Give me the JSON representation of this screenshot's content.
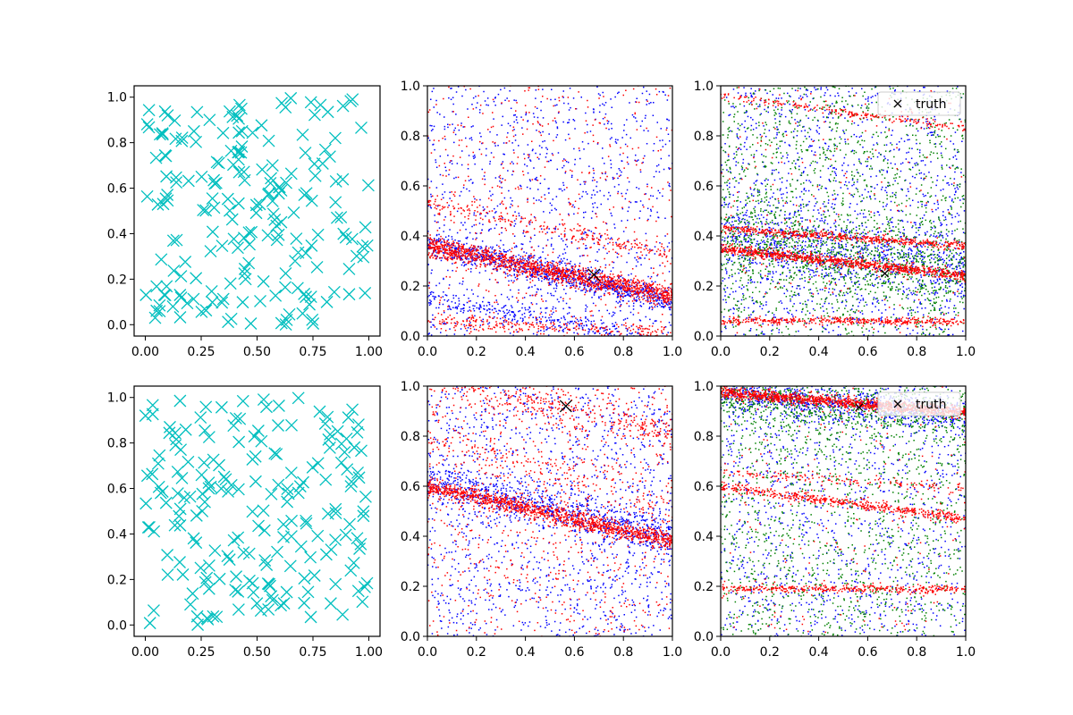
{
  "chart_data": [
    {
      "panel": "top-left",
      "type": "scatter",
      "xlim": [
        -0.05,
        1.05
      ],
      "ylim": [
        -0.05,
        1.05
      ],
      "xticks": [
        "0.00",
        "0.25",
        "0.50",
        "0.75",
        "1.00"
      ],
      "yticks": [
        "0.0",
        "0.2",
        "0.4",
        "0.6",
        "0.8",
        "1.0"
      ],
      "grid": false,
      "series": [
        {
          "marker": "x",
          "color": "#00bfbf",
          "random_uniform_points": 200,
          "seed": 11
        }
      ]
    },
    {
      "panel": "top-middle",
      "type": "scatter",
      "xlim": [
        0,
        1
      ],
      "ylim": [
        0,
        1
      ],
      "xticks": [
        "0.0",
        "0.2",
        "0.4",
        "0.6",
        "0.8",
        "1.0"
      ],
      "yticks": [
        "0.0",
        "0.2",
        "0.4",
        "0.6",
        "0.8",
        "1.0"
      ],
      "grid": false,
      "series": [
        {
          "color": "#0000ff",
          "marker": "dot",
          "bands": [
            {
              "y0": 0.37,
              "slope": -0.23,
              "spread": 0.025,
              "n": 900
            },
            {
              "y0": 0.16,
              "slope": -0.2,
              "spread": 0.02,
              "n": 300
            }
          ],
          "background": 1100,
          "seed": 21
        },
        {
          "color": "#ff0000",
          "marker": "dot",
          "bands": [
            {
              "y0": 0.36,
              "slope": -0.2,
              "spread": 0.02,
              "n": 1400
            },
            {
              "y0": 0.53,
              "slope": -0.2,
              "spread": 0.02,
              "n": 250
            },
            {
              "y0": 0.06,
              "slope": -0.05,
              "spread": 0.015,
              "n": 250
            }
          ],
          "background": 500,
          "seed": 22
        }
      ],
      "truth": {
        "x": 0.68,
        "y": 0.245,
        "marker": "X",
        "color": "#000000"
      }
    },
    {
      "panel": "top-right",
      "type": "scatter",
      "xlim": [
        0,
        1
      ],
      "ylim": [
        0,
        1
      ],
      "xticks": [
        "0.0",
        "0.2",
        "0.4",
        "0.6",
        "0.8",
        "1.0"
      ],
      "yticks": [
        "0.0",
        "0.2",
        "0.4",
        "0.6",
        "0.8",
        "1.0"
      ],
      "grid": false,
      "legend": {
        "entries": [
          "truth"
        ],
        "marker": "x",
        "placement": "upper right"
      },
      "series": [
        {
          "color": "#0000ff",
          "marker": "dot",
          "bands": [
            {
              "y0": 0.4,
              "slope": -0.12,
              "spread": 0.07,
              "n": 700
            }
          ],
          "background": 1300,
          "seed": 31
        },
        {
          "color": "#008000",
          "marker": "dot",
          "bands": [
            {
              "y0": 0.38,
              "slope": -0.12,
              "spread": 0.08,
              "n": 800
            }
          ],
          "background": 1400,
          "seed": 32
        },
        {
          "color": "#ff0000",
          "marker": "dot",
          "bands": [
            {
              "y0": 0.35,
              "slope": -0.11,
              "spread": 0.01,
              "n": 900
            },
            {
              "y0": 0.43,
              "slope": -0.07,
              "spread": 0.008,
              "n": 500
            },
            {
              "y0": 0.06,
              "slope": 0.0,
              "spread": 0.008,
              "n": 400
            },
            {
              "y0": 0.96,
              "slope": -0.13,
              "spread": 0.008,
              "n": 200
            }
          ],
          "background": 200,
          "seed": 33
        }
      ],
      "truth": {
        "x": 0.67,
        "y": 0.25,
        "marker": "x",
        "color": "#000000"
      }
    },
    {
      "panel": "bottom-left",
      "type": "scatter",
      "xlim": [
        -0.05,
        1.05
      ],
      "ylim": [
        -0.05,
        1.05
      ],
      "xticks": [
        "0.00",
        "0.25",
        "0.50",
        "0.75",
        "1.00"
      ],
      "yticks": [
        "0.0",
        "0.2",
        "0.4",
        "0.6",
        "0.8",
        "1.0"
      ],
      "grid": false,
      "series": [
        {
          "marker": "x",
          "color": "#00bfbf",
          "random_uniform_points": 200,
          "seed": 41
        }
      ]
    },
    {
      "panel": "bottom-middle",
      "type": "scatter",
      "xlim": [
        0,
        1
      ],
      "ylim": [
        0,
        1
      ],
      "xticks": [
        "0.0",
        "0.2",
        "0.4",
        "0.6",
        "0.8",
        "1.0"
      ],
      "yticks": [
        "0.0",
        "0.2",
        "0.4",
        "0.6",
        "0.8",
        "1.0"
      ],
      "grid": false,
      "series": [
        {
          "color": "#0000ff",
          "marker": "dot",
          "bands": [
            {
              "y0": 0.62,
              "slope": -0.22,
              "spread": 0.04,
              "n": 800
            }
          ],
          "background": 1300,
          "seed": 51
        },
        {
          "color": "#ff0000",
          "marker": "dot",
          "bands": [
            {
              "y0": 0.6,
              "slope": -0.22,
              "spread": 0.018,
              "n": 1200
            },
            {
              "y0": 1.05,
              "slope": -0.25,
              "spread": 0.04,
              "n": 400
            },
            {
              "y0": 0.8,
              "slope": -0.3,
              "spread": 0.05,
              "n": 200
            }
          ],
          "background": 700,
          "seed": 52
        }
      ],
      "truth": {
        "x": 0.565,
        "y": 0.92,
        "marker": "X",
        "color": "#000000"
      }
    },
    {
      "panel": "bottom-right",
      "type": "scatter",
      "xlim": [
        0,
        1
      ],
      "ylim": [
        0,
        1
      ],
      "xticks": [
        "0.0",
        "0.2",
        "0.4",
        "0.6",
        "0.8",
        "1.0"
      ],
      "yticks": [
        "0.0",
        "0.2",
        "0.4",
        "0.6",
        "0.8",
        "1.0"
      ],
      "grid": false,
      "legend": {
        "entries": [
          "truth"
        ],
        "marker": "x",
        "placement": "upper right"
      },
      "series": [
        {
          "color": "#0000ff",
          "marker": "dot",
          "bands": [
            {
              "y0": 0.97,
              "slope": -0.08,
              "spread": 0.035,
              "n": 800
            }
          ],
          "background": 1100,
          "seed": 61
        },
        {
          "color": "#008000",
          "marker": "dot",
          "bands": [
            {
              "y0": 0.95,
              "slope": -0.08,
              "spread": 0.05,
              "n": 600
            }
          ],
          "background": 1300,
          "seed": 62
        },
        {
          "color": "#ff0000",
          "marker": "dot",
          "bands": [
            {
              "y0": 0.975,
              "slope": -0.08,
              "spread": 0.012,
              "n": 1100
            },
            {
              "y0": 0.6,
              "slope": -0.13,
              "spread": 0.01,
              "n": 500
            },
            {
              "y0": 0.19,
              "slope": 0.0,
              "spread": 0.008,
              "n": 350
            },
            {
              "y0": 0.66,
              "slope": -0.07,
              "spread": 0.01,
              "n": 150
            }
          ],
          "background": 200,
          "seed": 63
        }
      ],
      "truth": {
        "x": 0.565,
        "y": 0.915,
        "marker": "x",
        "color": "#000000"
      }
    }
  ]
}
